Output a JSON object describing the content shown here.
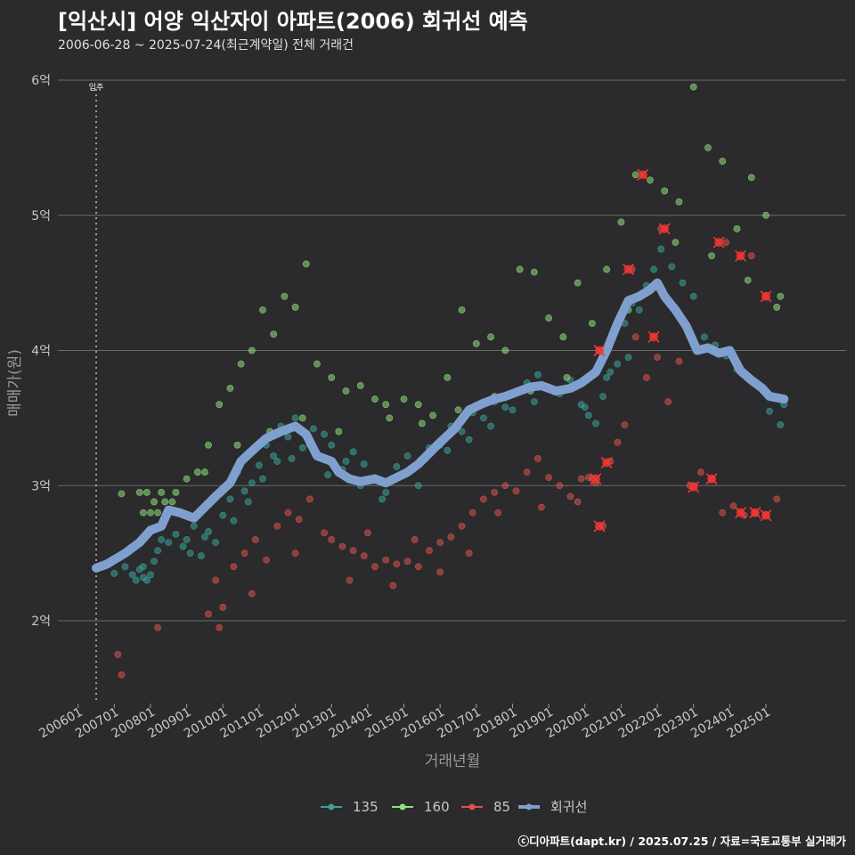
{
  "header": {
    "title": "[익산시] 어양 익산자이 아파트(2006) 회귀선 예측",
    "subtitle": "2006-06-28 ~ 2025-07-24(최근계약일) 전체 거래건"
  },
  "footer": {
    "credit": "ⓒ디아파트(dapt.kr) / 2025.07.25 / 자료=국토교통부 실거래가"
  },
  "chart_data": {
    "type": "scatter",
    "title": "[익산시] 어양 익산자이 아파트(2006) 회귀선 예측",
    "xlabel": "거래년월",
    "ylabel": "매매가(원)",
    "xlim": [
      2006.0,
      2025.8
    ],
    "ylim": [
      1.4,
      6.3
    ],
    "y_ticks": [
      2,
      3,
      4,
      5,
      6
    ],
    "y_tick_labels": [
      "2억",
      "3억",
      "4억",
      "5억",
      "6억"
    ],
    "x_ticks": [
      2006,
      2007,
      2008,
      2009,
      2010,
      2011,
      2012,
      2013,
      2014,
      2015,
      2016,
      2017,
      2018,
      2019,
      2020,
      2021,
      2022,
      2023,
      2024,
      2025
    ],
    "x_tick_labels": [
      "200601",
      "200701",
      "200801",
      "200901",
      "201001",
      "201101",
      "201201",
      "201301",
      "201401",
      "201501",
      "201601",
      "201701",
      "201801",
      "201901",
      "202001",
      "202101",
      "202201",
      "202301",
      "202401",
      "202501"
    ],
    "annotation": {
      "label": "입주",
      "x": 2006.5
    },
    "colors": {
      "s135": "#3aa39a",
      "s160": "#8ee07a",
      "s85": "#d9544f",
      "regression": "#7fa0cf",
      "grid": "#6a6a6a"
    },
    "legend": [
      {
        "name": "135",
        "color": "#3aa39a"
      },
      {
        "name": "160",
        "color": "#8ee07a"
      },
      {
        "name": "85",
        "color": "#d9544f"
      },
      {
        "name": "회귀선",
        "color": "#7fa0cf"
      }
    ],
    "regression_line": {
      "x": [
        2006.5,
        2006.8,
        2007.3,
        2007.7,
        2008.0,
        2008.3,
        2008.5,
        2008.8,
        2009.2,
        2009.5,
        2009.8,
        2010.2,
        2010.5,
        2010.9,
        2011.2,
        2011.6,
        2012.0,
        2012.3,
        2012.6,
        2013.0,
        2013.2,
        2013.5,
        2013.8,
        2014.2,
        2014.5,
        2014.8,
        2015.1,
        2015.4,
        2015.7,
        2016.0,
        2016.4,
        2016.8,
        2017.2,
        2017.5,
        2017.8,
        2018.2,
        2018.5,
        2018.8,
        2019.2,
        2019.6,
        2019.9,
        2020.3,
        2020.6,
        2020.9,
        2021.2,
        2021.5,
        2021.8,
        2022.0,
        2022.2,
        2022.5,
        2022.8,
        2023.1,
        2023.4,
        2023.7,
        2024.0,
        2024.3,
        2024.6,
        2024.9,
        2025.1,
        2025.5
      ],
      "y": [
        2.39,
        2.42,
        2.5,
        2.58,
        2.67,
        2.7,
        2.82,
        2.8,
        2.76,
        2.84,
        2.92,
        3.02,
        3.18,
        3.28,
        3.35,
        3.4,
        3.44,
        3.38,
        3.22,
        3.18,
        3.1,
        3.05,
        3.03,
        3.05,
        3.02,
        3.06,
        3.1,
        3.16,
        3.24,
        3.32,
        3.42,
        3.56,
        3.61,
        3.64,
        3.66,
        3.7,
        3.73,
        3.74,
        3.7,
        3.72,
        3.76,
        3.84,
        4.0,
        4.2,
        4.37,
        4.4,
        4.45,
        4.5,
        4.4,
        4.3,
        4.18,
        4.0,
        4.02,
        3.98,
        4.0,
        3.85,
        3.78,
        3.72,
        3.66,
        3.64
      ]
    },
    "series": [
      {
        "name": "135",
        "x": [
          2006.7,
          2007.0,
          2007.3,
          2007.5,
          2007.6,
          2007.7,
          2007.8,
          2007.8,
          2007.9,
          2008.0,
          2008.1,
          2008.2,
          2008.3,
          2008.5,
          2008.7,
          2008.9,
          2009.0,
          2009.2,
          2009.4,
          2009.6,
          2009.8,
          2010.0,
          2010.2,
          2010.4,
          2010.6,
          2010.8,
          2011.0,
          2011.2,
          2011.4,
          2011.6,
          2011.8,
          2012.0,
          2012.2,
          2012.5,
          2012.8,
          2013.0,
          2013.3,
          2013.6,
          2013.9,
          2014.2,
          2014.5,
          2014.8,
          2015.1,
          2015.4,
          2015.7,
          2016.0,
          2016.3,
          2016.6,
          2016.9,
          2017.2,
          2017.5,
          2017.8,
          2018.1,
          2018.4,
          2018.7,
          2019.0,
          2019.3,
          2019.6,
          2019.9,
          2020.1,
          2020.3,
          2020.5,
          2020.7,
          2020.9,
          2021.1,
          2021.3,
          2021.5,
          2021.7,
          2021.9,
          2022.1,
          2022.4,
          2022.7,
          2023.0,
          2023.3,
          2023.6,
          2023.9,
          2024.2,
          2024.5,
          2024.8,
          2025.1,
          2025.4,
          2025.5,
          2009.1,
          2009.5,
          2010.3,
          2010.7,
          2011.1,
          2011.5,
          2011.9,
          2012.4,
          2012.9,
          2013.4,
          2013.8,
          2014.4,
          2015.0,
          2015.6,
          2016.2,
          2016.8,
          2017.4,
          2018.0,
          2018.6,
          2019.4,
          2020.0,
          2020.6,
          2021.2
        ],
        "y": [
          2.4,
          2.35,
          2.4,
          2.34,
          2.3,
          2.38,
          2.32,
          2.4,
          2.3,
          2.34,
          2.44,
          2.52,
          2.6,
          2.58,
          2.64,
          2.55,
          2.6,
          2.7,
          2.48,
          2.66,
          2.58,
          2.78,
          2.9,
          3.1,
          2.96,
          3.02,
          3.15,
          3.3,
          3.22,
          3.44,
          3.36,
          3.5,
          3.28,
          3.42,
          3.38,
          3.3,
          3.12,
          3.25,
          3.16,
          3.06,
          2.95,
          3.14,
          3.22,
          3.0,
          3.28,
          3.3,
          3.44,
          3.4,
          3.54,
          3.5,
          3.62,
          3.58,
          3.7,
          3.76,
          3.82,
          3.72,
          3.68,
          3.78,
          3.6,
          3.52,
          3.46,
          3.66,
          3.84,
          3.9,
          4.2,
          4.35,
          4.3,
          4.48,
          4.6,
          4.75,
          4.62,
          4.5,
          4.4,
          4.1,
          4.04,
          3.96,
          3.86,
          3.8,
          3.74,
          3.55,
          3.45,
          3.6,
          2.5,
          2.62,
          2.74,
          2.88,
          3.05,
          3.18,
          3.2,
          3.3,
          3.08,
          3.18,
          3.0,
          2.9,
          3.08,
          3.2,
          3.26,
          3.34,
          3.44,
          3.56,
          3.62,
          3.7,
          3.58,
          3.8,
          3.95
        ]
      },
      {
        "name": "160",
        "x": [
          2007.2,
          2007.7,
          2007.9,
          2008.1,
          2008.3,
          2008.5,
          2008.7,
          2009.0,
          2009.3,
          2009.6,
          2009.9,
          2010.2,
          2010.5,
          2010.8,
          2011.1,
          2011.4,
          2011.7,
          2012.0,
          2012.3,
          2012.6,
          2013.0,
          2013.4,
          2013.8,
          2014.2,
          2014.6,
          2015.0,
          2015.4,
          2015.8,
          2016.2,
          2016.6,
          2017.0,
          2017.4,
          2017.8,
          2018.2,
          2018.6,
          2019.0,
          2019.4,
          2019.8,
          2020.2,
          2020.6,
          2021.0,
          2021.4,
          2021.8,
          2022.2,
          2022.6,
          2023.0,
          2023.4,
          2023.8,
          2024.2,
          2024.6,
          2025.0,
          2025.4,
          2007.8,
          2008.0,
          2008.2,
          2008.4,
          2008.6,
          2009.5,
          2010.4,
          2011.3,
          2012.2,
          2013.2,
          2014.5,
          2015.5,
          2016.5,
          2017.5,
          2018.5,
          2019.5,
          2020.5,
          2021.2,
          2022.5,
          2023.5,
          2024.5,
          2025.3
        ],
        "y": [
          2.94,
          2.95,
          2.95,
          2.88,
          2.95,
          2.82,
          2.95,
          3.05,
          3.1,
          3.3,
          3.6,
          3.72,
          3.9,
          4.0,
          4.3,
          4.12,
          4.4,
          4.32,
          4.64,
          3.9,
          3.8,
          3.7,
          3.74,
          3.64,
          3.5,
          3.64,
          3.6,
          3.52,
          3.8,
          4.3,
          4.05,
          4.1,
          4.0,
          4.6,
          4.58,
          4.24,
          4.1,
          4.5,
          4.2,
          4.6,
          4.95,
          5.3,
          5.26,
          5.18,
          5.1,
          5.95,
          5.5,
          5.4,
          4.9,
          5.28,
          5.0,
          4.4,
          2.8,
          2.8,
          2.8,
          2.88,
          2.88,
          3.1,
          3.3,
          3.4,
          3.5,
          3.4,
          3.6,
          3.46,
          3.56,
          3.66,
          3.7,
          3.8,
          3.96,
          4.3,
          4.8,
          4.7,
          4.52,
          4.32
        ]
      },
      {
        "name": "85",
        "x": [
          2007.1,
          2007.2,
          2008.2,
          2009.6,
          2009.8,
          2010.0,
          2010.3,
          2010.6,
          2010.9,
          2011.2,
          2011.5,
          2011.8,
          2012.1,
          2012.4,
          2012.8,
          2013.0,
          2013.3,
          2013.6,
          2013.9,
          2014.2,
          2014.5,
          2014.8,
          2015.1,
          2015.4,
          2015.7,
          2016.0,
          2016.3,
          2016.6,
          2016.9,
          2017.2,
          2017.5,
          2017.8,
          2018.1,
          2018.4,
          2018.7,
          2019.0,
          2019.3,
          2019.6,
          2019.9,
          2020.1,
          2020.3,
          2020.5,
          2020.7,
          2020.9,
          2021.1,
          2021.4,
          2021.7,
          2022.0,
          2022.3,
          2022.6,
          2022.9,
          2023.2,
          2023.5,
          2023.8,
          2024.1,
          2024.4,
          2024.7,
          2025.0,
          2025.3,
          2009.9,
          2010.8,
          2012.0,
          2013.5,
          2014.0,
          2014.7,
          2015.3,
          2016.0,
          2016.8,
          2017.6,
          2018.8,
          2019.8,
          2020.2,
          2020.4,
          2021.3,
          2022.1,
          2023.0,
          2023.9,
          2024.6,
          2025.0
        ],
        "y": [
          1.75,
          1.6,
          1.95,
          2.05,
          2.3,
          2.1,
          2.4,
          2.5,
          2.6,
          2.45,
          2.7,
          2.8,
          2.75,
          2.9,
          2.65,
          2.6,
          2.55,
          2.52,
          2.48,
          2.4,
          2.45,
          2.42,
          2.44,
          2.4,
          2.52,
          2.58,
          2.62,
          2.7,
          2.8,
          2.9,
          2.95,
          3.0,
          2.96,
          3.1,
          3.2,
          3.06,
          3.0,
          2.92,
          3.05,
          3.06,
          3.02,
          2.7,
          3.18,
          3.32,
          3.45,
          4.1,
          3.8,
          3.95,
          3.62,
          3.92,
          3.0,
          3.1,
          3.05,
          2.8,
          2.85,
          2.78,
          2.8,
          2.78,
          2.9,
          1.95,
          2.2,
          2.5,
          2.3,
          2.65,
          2.26,
          2.6,
          2.36,
          2.5,
          2.8,
          2.84,
          2.88,
          3.05,
          4.0,
          4.6,
          4.9,
          3.0,
          4.8,
          4.7,
          4.4
        ]
      }
    ],
    "highlight_points": {
      "x": [
        2021.6,
        2021.2,
        2022.2,
        2021.9,
        2020.4,
        2020.3,
        2020.6,
        2020.4,
        2023.0,
        2023.5,
        2023.7,
        2024.3,
        2024.3,
        2024.7,
        2025.0,
        2025.0
      ],
      "y": [
        5.3,
        4.6,
        4.9,
        4.1,
        4.0,
        3.05,
        3.17,
        2.7,
        2.99,
        3.05,
        4.8,
        4.7,
        2.8,
        2.8,
        4.4,
        2.78
      ]
    }
  }
}
